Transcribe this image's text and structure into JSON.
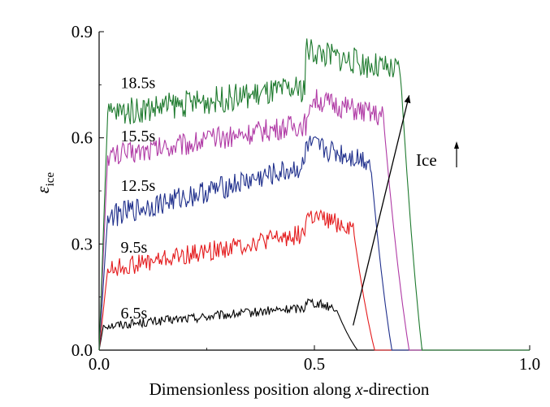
{
  "chart_data": {
    "type": "line",
    "title": "",
    "xlabel": "Dimensionless position along ",
    "xlabel_italic": "x",
    "xlabel_suffix": "-direction",
    "ylabel_symbol": "ε",
    "ylabel_sub": "ice",
    "xlim": [
      0.0,
      1.0
    ],
    "ylim": [
      0.0,
      0.9
    ],
    "xticks": [
      0.0,
      0.5,
      1.0
    ],
    "xtick_labels": [
      "0.0",
      "0.5",
      "1.0"
    ],
    "yticks": [
      0.0,
      0.3,
      0.6,
      0.9
    ],
    "ytick_labels": [
      "0.0",
      "0.3",
      "0.6",
      "0.9"
    ],
    "grid": false,
    "legend": "none (inline labels)",
    "series": [
      {
        "name": "6.5s",
        "color": "#000000",
        "start": 0.0,
        "rise_end": 0.01,
        "plateau_start": 0.07,
        "plateau_end": 0.12,
        "peak": 0.14,
        "peak_pos": 0.48,
        "drop_start": 0.55,
        "end": 0.6,
        "noise": 0.012,
        "label_value": 0.09
      },
      {
        "name": "9.5s",
        "color": "#e41a1c",
        "start": 0.0,
        "rise_end": 0.02,
        "plateau_start": 0.23,
        "plateau_end": 0.33,
        "peak": 0.38,
        "peak_pos": 0.48,
        "drop_start": 0.59,
        "end": 0.64,
        "noise": 0.025,
        "label_value": 0.275
      },
      {
        "name": "12.5s",
        "color": "#1f2f8c",
        "start": 0.0,
        "rise_end": 0.02,
        "plateau_start": 0.38,
        "plateau_end": 0.52,
        "peak": 0.58,
        "peak_pos": 0.48,
        "drop_start": 0.63,
        "end": 0.68,
        "noise": 0.03,
        "label_value": 0.45
      },
      {
        "name": "15.5s",
        "color": "#b03aa5",
        "start": 0.0,
        "rise_end": 0.02,
        "plateau_start": 0.55,
        "plateau_end": 0.64,
        "peak": 0.71,
        "peak_pos": 0.49,
        "drop_start": 0.66,
        "end": 0.72,
        "noise": 0.03,
        "label_value": 0.59
      },
      {
        "name": "18.5s",
        "color": "#1e7a2e",
        "start": 0.0,
        "rise_end": 0.02,
        "plateau_start": 0.67,
        "plateau_end": 0.74,
        "peak": 0.85,
        "peak_pos": 0.48,
        "drop_start": 0.7,
        "end": 0.75,
        "noise": 0.035,
        "label_value": 0.74
      }
    ],
    "annotation": {
      "text": "Ice",
      "arrow_from": [
        0.59,
        0.07
      ],
      "arrow_to": [
        0.72,
        0.72
      ]
    }
  }
}
